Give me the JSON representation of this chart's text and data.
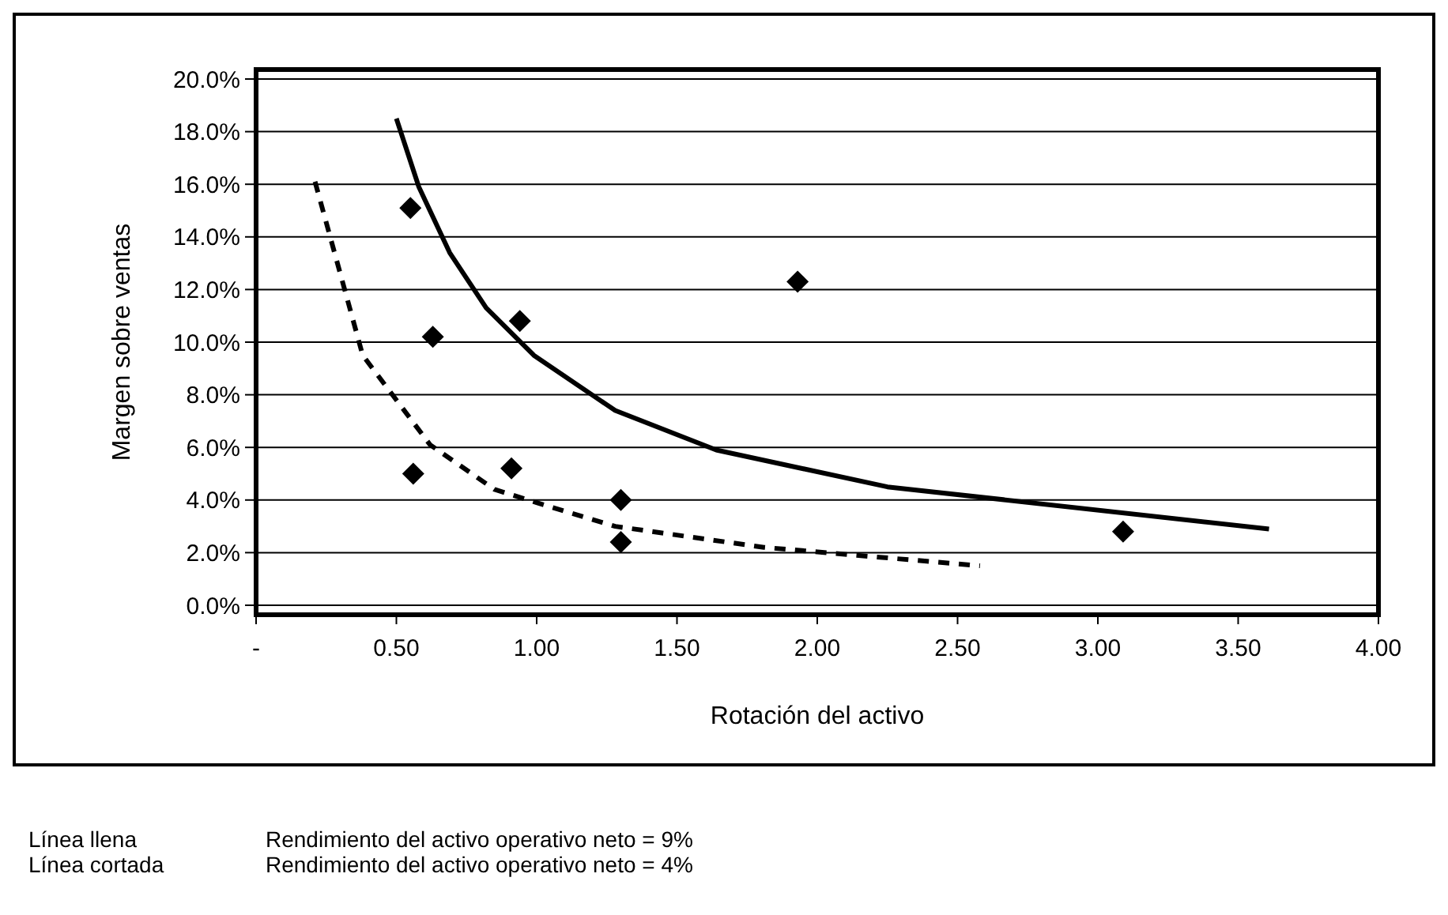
{
  "chart_data": {
    "type": "scatter",
    "xlabel": "Rotación del activo",
    "ylabel": "Margen sobre ventas",
    "xlim": [
      0,
      4
    ],
    "xticks": [
      {
        "value": 0,
        "label": "-"
      },
      {
        "value": 0.5,
        "label": "0.50"
      },
      {
        "value": 1,
        "label": "1.00"
      },
      {
        "value": 1.5,
        "label": "1.50"
      },
      {
        "value": 2,
        "label": "2.00"
      },
      {
        "value": 2.5,
        "label": "2.50"
      },
      {
        "value": 3,
        "label": "3.00"
      },
      {
        "value": 3.5,
        "label": "3.50"
      },
      {
        "value": 4,
        "label": "4.00"
      }
    ],
    "ylim": [
      0,
      20
    ],
    "yticks": [
      {
        "value": 0,
        "label": "0.0%"
      },
      {
        "value": 2,
        "label": "2.0%"
      },
      {
        "value": 4,
        "label": "4.0%"
      },
      {
        "value": 6,
        "label": "6.0%"
      },
      {
        "value": 8,
        "label": "8.0%"
      },
      {
        "value": 10,
        "label": "10.0%"
      },
      {
        "value": 12,
        "label": "12.0%"
      },
      {
        "value": 14,
        "label": "14.0%"
      },
      {
        "value": 16,
        "label": "16.0%"
      },
      {
        "value": 18,
        "label": "18.0%"
      },
      {
        "value": 20,
        "label": "20.0%"
      }
    ],
    "grid": "y",
    "series": [
      {
        "color": "#000000",
        "marker": "diamond",
        "x": [
          0.55,
          0.63,
          0.94,
          1.93,
          0.56,
          0.91,
          1.3,
          1.3,
          3.09
        ],
        "values": [
          15.1,
          10.2,
          10.8,
          12.3,
          5.0,
          5.2,
          4.0,
          2.4,
          2.8
        ]
      },
      {
        "type": "line",
        "color": "#000000",
        "line_style": "solid",
        "marker": "none",
        "x": [
          0.5,
          0.58,
          0.69,
          0.82,
          0.99,
          1.28,
          1.64,
          2.25,
          3.61
        ],
        "values": [
          18.5,
          15.9,
          13.4,
          11.3,
          9.5,
          7.4,
          5.9,
          4.5,
          2.9
        ]
      },
      {
        "type": "line",
        "color": "#000000",
        "line_style": "dashed",
        "marker": "none",
        "x": [
          0.21,
          0.38,
          0.62,
          0.85,
          1.0,
          1.28,
          1.81,
          2.58
        ],
        "values": [
          16.1,
          9.5,
          6.1,
          4.4,
          3.9,
          3.0,
          2.2,
          1.5
        ]
      }
    ],
    "annotations": [
      "Línea llena",
      "Rendimiento del activo operativo neto = 9%",
      "Línea cortada",
      "Rendimiento del activo operativo neto = 4%"
    ]
  }
}
